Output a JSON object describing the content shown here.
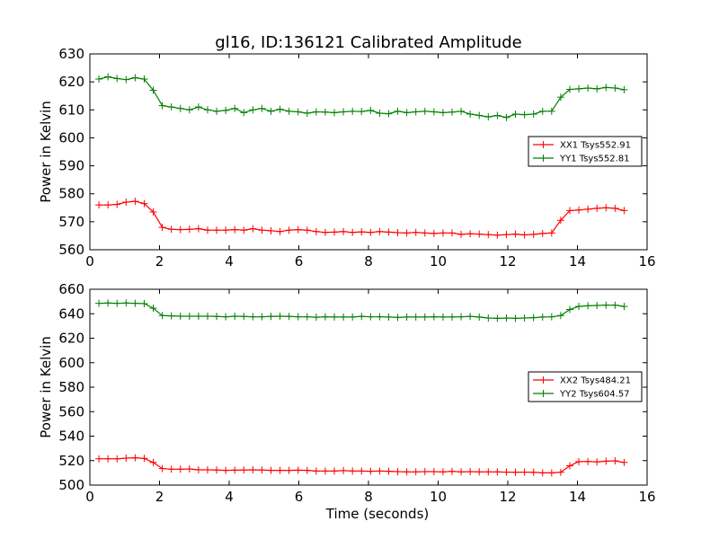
{
  "title": "gl16, ID:136121 Calibrated Amplitude",
  "chart_data": [
    {
      "type": "line",
      "ylabel": "Power in Kelvin",
      "xlabel": "",
      "xlim": [
        0,
        16
      ],
      "ylim": [
        560,
        630
      ],
      "xticks": [
        0,
        2,
        4,
        6,
        8,
        10,
        12,
        14,
        16
      ],
      "yticks": [
        560,
        570,
        580,
        590,
        600,
        610,
        620,
        630
      ],
      "legend_position": "right",
      "x": [
        0.26,
        0.52,
        0.78,
        1.04,
        1.3,
        1.56,
        1.82,
        2.08,
        2.34,
        2.6,
        2.86,
        3.12,
        3.38,
        3.64,
        3.9,
        4.16,
        4.42,
        4.68,
        4.94,
        5.2,
        5.46,
        5.72,
        5.98,
        6.24,
        6.5,
        6.76,
        7.02,
        7.28,
        7.54,
        7.8,
        8.06,
        8.32,
        8.58,
        8.84,
        9.1,
        9.36,
        9.62,
        9.88,
        10.14,
        10.4,
        10.66,
        10.92,
        11.18,
        11.44,
        11.7,
        11.96,
        12.22,
        12.48,
        12.74,
        13.0,
        13.26,
        13.52,
        13.78,
        14.04,
        14.3,
        14.56,
        14.82,
        15.08,
        15.34
      ],
      "series": [
        {
          "name": "XX1 Tsys552.91",
          "color": "#ff0000",
          "values": [
            576,
            576,
            576.2,
            577,
            577.3,
            576.5,
            573.5,
            568,
            567.3,
            567.2,
            567.3,
            567.5,
            567,
            567,
            567,
            567.2,
            567,
            567.5,
            567,
            566.8,
            566.5,
            567,
            567.2,
            567,
            566.5,
            566.2,
            566.3,
            566.5,
            566.2,
            566.4,
            566.2,
            566.5,
            566.3,
            566.1,
            566,
            566.2,
            566,
            565.8,
            566,
            566,
            565.5,
            565.7,
            565.6,
            565.4,
            565.2,
            565.4,
            565.6,
            565.3,
            565.5,
            565.8,
            566,
            570.5,
            574,
            574.2,
            574.5,
            574.8,
            575,
            574.8,
            574
          ]
        },
        {
          "name": "YY1 Tsys552.81",
          "color": "#008000",
          "values": [
            621,
            621.8,
            621.2,
            620.8,
            621.5,
            621,
            617,
            611.5,
            611,
            610.5,
            610,
            611,
            610,
            609.5,
            609.8,
            610.5,
            609,
            610,
            610.5,
            609.5,
            610.2,
            609.5,
            609.3,
            608.8,
            609.3,
            609.2,
            609,
            609.3,
            609.5,
            609.4,
            609.8,
            608.8,
            608.6,
            609.5,
            609,
            609.3,
            609.5,
            609.3,
            609,
            609.2,
            609.5,
            608.5,
            608,
            607.5,
            608,
            607.3,
            608.5,
            608.3,
            608.5,
            609.5,
            609.5,
            614.5,
            617.3,
            617.5,
            617.8,
            617.5,
            618,
            617.8,
            617.2
          ]
        }
      ]
    },
    {
      "type": "line",
      "ylabel": "Power in Kelvin",
      "xlabel": "Time (seconds)",
      "xlim": [
        0,
        16
      ],
      "ylim": [
        500,
        660
      ],
      "xticks": [
        0,
        2,
        4,
        6,
        8,
        10,
        12,
        14,
        16
      ],
      "yticks": [
        500,
        520,
        540,
        560,
        580,
        600,
        620,
        640,
        660
      ],
      "legend_position": "right",
      "x": [
        0.26,
        0.52,
        0.78,
        1.04,
        1.3,
        1.56,
        1.82,
        2.08,
        2.34,
        2.6,
        2.86,
        3.12,
        3.38,
        3.64,
        3.9,
        4.16,
        4.42,
        4.68,
        4.94,
        5.2,
        5.46,
        5.72,
        5.98,
        6.24,
        6.5,
        6.76,
        7.02,
        7.28,
        7.54,
        7.8,
        8.06,
        8.32,
        8.58,
        8.84,
        9.1,
        9.36,
        9.62,
        9.88,
        10.14,
        10.4,
        10.66,
        10.92,
        11.18,
        11.44,
        11.7,
        11.96,
        12.22,
        12.48,
        12.74,
        13.0,
        13.26,
        13.52,
        13.78,
        14.04,
        14.3,
        14.56,
        14.82,
        15.08,
        15.34
      ],
      "series": [
        {
          "name": "XX2 Tsys484.21",
          "color": "#ff0000",
          "values": [
            521.5,
            521.5,
            521.5,
            522,
            522.3,
            521.8,
            518.5,
            513.5,
            513,
            513,
            513.2,
            512.5,
            512.5,
            512.3,
            512,
            512.2,
            512.3,
            512.5,
            512.3,
            512,
            512,
            512,
            512.2,
            512,
            511.5,
            511.5,
            511.5,
            511.8,
            511.5,
            511.5,
            511.3,
            511.5,
            511.3,
            511,
            510.8,
            510.8,
            511,
            511,
            510.8,
            511.2,
            510.8,
            511,
            510.8,
            510.8,
            510.8,
            510.6,
            510.5,
            510.6,
            510.5,
            510,
            510,
            510.5,
            515.8,
            519.2,
            519.3,
            519,
            519.5,
            519.8,
            518.5
          ]
        },
        {
          "name": "YY2 Tsys604.57",
          "color": "#008000",
          "values": [
            648.5,
            648.8,
            648.5,
            648.8,
            648.5,
            648.3,
            644.5,
            638.5,
            638.3,
            638,
            638,
            638,
            638,
            637.8,
            637.5,
            638,
            637.8,
            637.5,
            637.5,
            637.8,
            638,
            637.8,
            637.5,
            637.5,
            637.2,
            637.5,
            637.3,
            637.3,
            637.3,
            637.8,
            637.5,
            637.5,
            637.3,
            637,
            637.3,
            637.3,
            637.3,
            637.5,
            637.3,
            637.3,
            637.5,
            637.8,
            637.3,
            636.5,
            636.2,
            636.5,
            636.2,
            636.5,
            636.8,
            637.3,
            637.5,
            638.5,
            643.5,
            646,
            646.5,
            646.8,
            647,
            647,
            646
          ]
        }
      ]
    }
  ]
}
